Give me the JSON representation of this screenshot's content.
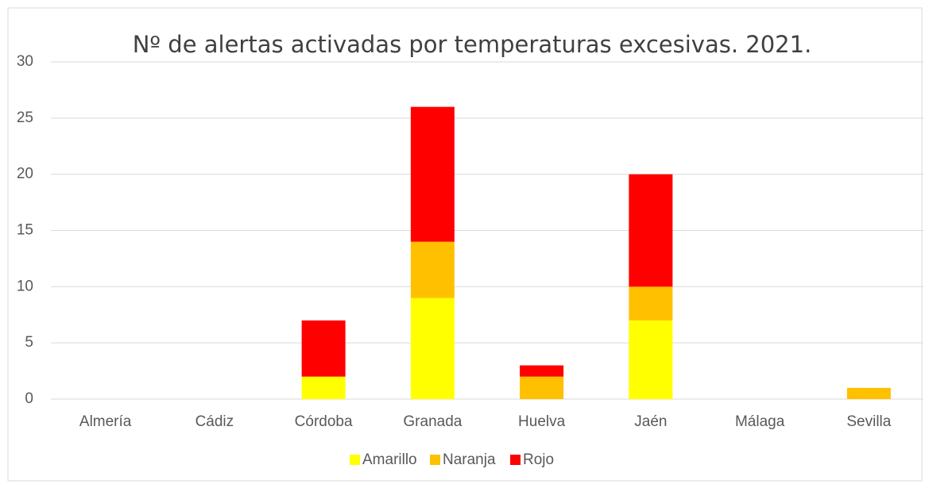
{
  "chart_data": {
    "type": "stacked_bar",
    "title": "Nº de alertas activadas por temperaturas excesivas. 2021.",
    "categories": [
      "Almería",
      "Cádiz",
      "Córdoba",
      "Granada",
      "Huelva",
      "Jaén",
      "Málaga",
      "Sevilla"
    ],
    "series": [
      {
        "name": "Amarillo",
        "color": "#ffff00",
        "values": [
          0,
          0,
          2,
          9,
          0,
          7,
          0,
          0
        ]
      },
      {
        "name": "Naranja",
        "color": "#ffc000",
        "values": [
          0,
          0,
          0,
          5,
          2,
          3,
          0,
          1
        ]
      },
      {
        "name": "Rojo",
        "color": "#ff0000",
        "values": [
          0,
          0,
          5,
          12,
          1,
          10,
          0,
          0
        ]
      }
    ],
    "ylim": [
      0,
      30
    ],
    "yticks": [
      0,
      5,
      10,
      15,
      20,
      25,
      30
    ],
    "grid": true,
    "legend": "bottom"
  }
}
